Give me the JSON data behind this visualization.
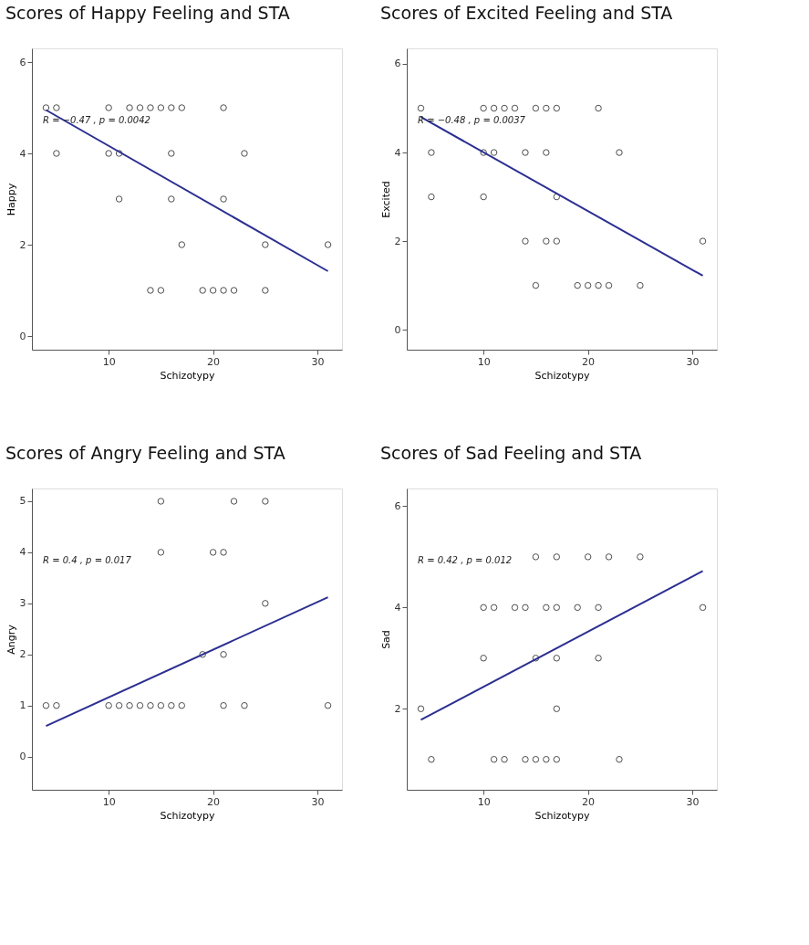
{
  "chart_data": [
    {
      "type": "scatter",
      "title": "Scores of Happy Feeling and STA",
      "xlabel": "Schizotypy",
      "ylabel": "Happy",
      "xlim": [
        2.65,
        32.35
      ],
      "xticks": [
        10,
        20,
        30
      ],
      "ylim": [
        -0.3,
        6.3
      ],
      "yticks": [
        0,
        2,
        4,
        6
      ],
      "annotations": [
        "R = −0.47 , p = 0.0042"
      ],
      "series": [
        {
          "marker": "circle",
          "color": "#000000",
          "x": [
            4,
            5,
            10,
            12,
            13,
            14,
            15,
            16,
            17,
            21,
            5,
            10,
            11,
            16,
            23,
            11,
            16,
            21,
            17,
            25,
            31,
            14,
            15,
            19,
            20,
            21,
            22,
            25
          ],
          "values": [
            5,
            5,
            5,
            5,
            5,
            5,
            5,
            5,
            5,
            5,
            4,
            4,
            4,
            4,
            4,
            3,
            3,
            3,
            2,
            2,
            2,
            1,
            1,
            1,
            1,
            1,
            1,
            1
          ]
        },
        {
          "type": "line",
          "marker": "none",
          "line_style": "solid",
          "color": "#2b2f91",
          "x": [
            4,
            31
          ],
          "values": [
            4.95,
            1.42
          ]
        }
      ]
    },
    {
      "type": "scatter",
      "title": "Scores of Excited Feeling and STA",
      "xlabel": "Schizotypy",
      "ylabel": "Excited",
      "xlim": [
        2.65,
        32.35
      ],
      "xticks": [
        10,
        20,
        30
      ],
      "ylim": [
        -0.45,
        6.35
      ],
      "yticks": [
        0,
        2,
        4,
        6
      ],
      "annotations": [
        "R = −0.48 , p = 0.0037"
      ],
      "series": [
        {
          "marker": "circle",
          "color": "#000000",
          "x": [
            4,
            10,
            11,
            12,
            13,
            15,
            16,
            17,
            21,
            5,
            10,
            11,
            14,
            16,
            23,
            5,
            10,
            17,
            14,
            16,
            17,
            31,
            15,
            19,
            20,
            21,
            22,
            25
          ],
          "values": [
            5,
            5,
            5,
            5,
            5,
            5,
            5,
            5,
            5,
            4,
            4,
            4,
            4,
            4,
            4,
            3,
            3,
            3,
            2,
            2,
            2,
            2,
            1,
            1,
            1,
            1,
            1,
            1
          ]
        },
        {
          "type": "line",
          "marker": "none",
          "line_style": "solid",
          "color": "#2b2f91",
          "x": [
            4,
            31
          ],
          "values": [
            4.8,
            1.22
          ]
        }
      ]
    },
    {
      "type": "scatter",
      "title": "Scores of Angry Feeling and STA",
      "xlabel": "Schizotypy",
      "ylabel": "Angry",
      "xlim": [
        2.65,
        32.35
      ],
      "xticks": [
        10,
        20,
        30
      ],
      "ylim": [
        -0.65,
        5.25
      ],
      "yticks": [
        0,
        1,
        2,
        3,
        4,
        5
      ],
      "annotations": [
        "R = 0.4 , p = 0.017"
      ],
      "series": [
        {
          "marker": "circle",
          "color": "#000000",
          "x": [
            15,
            22,
            25,
            15,
            20,
            21,
            25,
            19,
            21,
            4,
            5,
            10,
            11,
            12,
            13,
            14,
            15,
            16,
            17,
            21,
            23,
            31
          ],
          "values": [
            5,
            5,
            5,
            4,
            4,
            4,
            3,
            2,
            2,
            1,
            1,
            1,
            1,
            1,
            1,
            1,
            1,
            1,
            1,
            1,
            1,
            1
          ]
        },
        {
          "type": "line",
          "marker": "none",
          "line_style": "solid",
          "color": "#2b2f91",
          "x": [
            4,
            31
          ],
          "values": [
            0.6,
            3.12
          ]
        }
      ]
    },
    {
      "type": "scatter",
      "title": "Scores of Sad Feeling and STA",
      "xlabel": "Schizotypy",
      "ylabel": "Sad",
      "xlim": [
        2.65,
        32.35
      ],
      "xticks": [
        10,
        20,
        30
      ],
      "ylim": [
        0.4,
        6.35
      ],
      "yticks": [
        2,
        4,
        6
      ],
      "annotations": [
        "R = 0.42 , p = 0.012"
      ],
      "series": [
        {
          "marker": "circle",
          "color": "#000000",
          "x": [
            15,
            17,
            20,
            22,
            25,
            10,
            11,
            13,
            14,
            16,
            17,
            19,
            21,
            31,
            10,
            15,
            17,
            21,
            4,
            17,
            5,
            11,
            12,
            14,
            15,
            16,
            17,
            23
          ],
          "values": [
            5,
            5,
            5,
            5,
            5,
            4,
            4,
            4,
            4,
            4,
            4,
            4,
            4,
            4,
            3,
            3,
            3,
            3,
            2,
            2,
            1,
            1,
            1,
            1,
            1,
            1,
            1,
            1
          ]
        },
        {
          "type": "line",
          "marker": "none",
          "line_style": "solid",
          "color": "#2b2f91",
          "x": [
            4,
            31
          ],
          "values": [
            1.78,
            4.72
          ]
        }
      ]
    }
  ]
}
